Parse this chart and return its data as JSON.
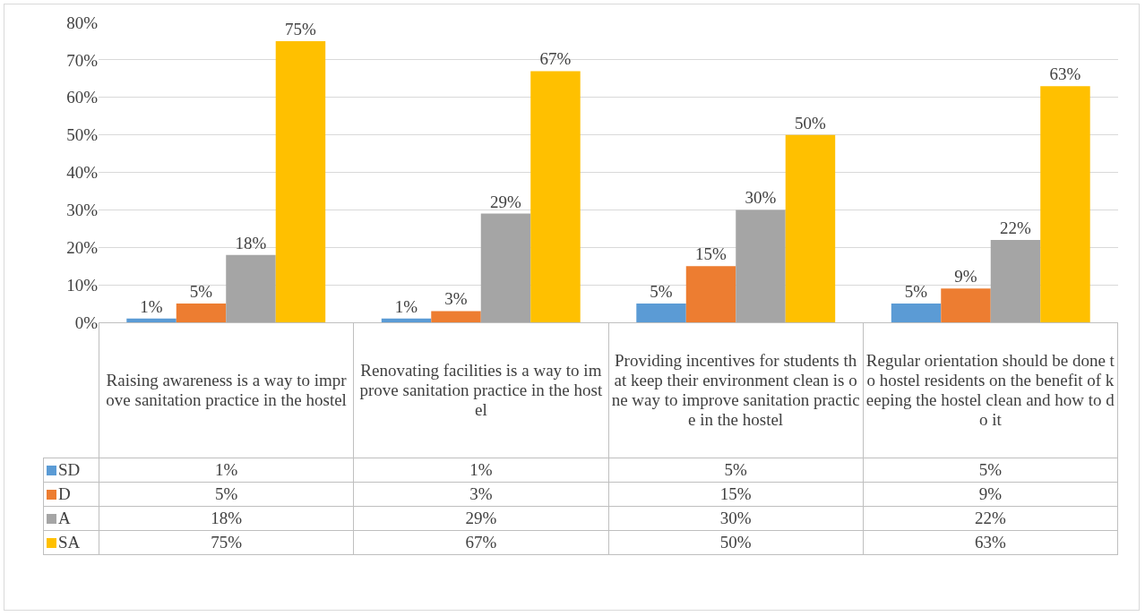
{
  "chart_data": {
    "type": "bar",
    "categories": [
      "Raising awareness is a way to improve sanitation practice in the hostel",
      "Renovating facilities is a way to improve sanitation practice in the hostel",
      "Providing incentives for students that keep their environment clean is one way to improve sanitation practice in the hostel",
      "Regular orientation should be done to hostel residents on the benefit of keeping the hostel clean and how to do it"
    ],
    "series": [
      {
        "name": "SD",
        "color": "#5b9bd5",
        "values": [
          1,
          1,
          5,
          5
        ],
        "value_labels": [
          "1%",
          "1%",
          "5%",
          "5%"
        ]
      },
      {
        "name": "D",
        "color": "#ed7d31",
        "values": [
          5,
          3,
          15,
          9
        ],
        "value_labels": [
          "5%",
          "3%",
          "15%",
          "9%"
        ]
      },
      {
        "name": "A",
        "color": "#a5a5a5",
        "values": [
          18,
          29,
          30,
          22
        ],
        "value_labels": [
          "18%",
          "29%",
          "30%",
          "22%"
        ]
      },
      {
        "name": "SA",
        "color": "#ffc000",
        "values": [
          75,
          67,
          50,
          63
        ],
        "value_labels": [
          "75%",
          "67%",
          "50%",
          "63%"
        ]
      }
    ],
    "ylim": [
      0,
      80
    ],
    "yticks": [
      {
        "value": 0,
        "label": "0%"
      },
      {
        "value": 10,
        "label": "10%"
      },
      {
        "value": 20,
        "label": "20%"
      },
      {
        "value": 30,
        "label": "30%"
      },
      {
        "value": 40,
        "label": "40%"
      },
      {
        "value": 50,
        "label": "50%"
      },
      {
        "value": 60,
        "label": "60%"
      },
      {
        "value": 70,
        "label": "70%"
      },
      {
        "value": 80,
        "label": "80%"
      }
    ],
    "grid": "y",
    "legend": "bottom left",
    "tick_labels": "y"
  }
}
